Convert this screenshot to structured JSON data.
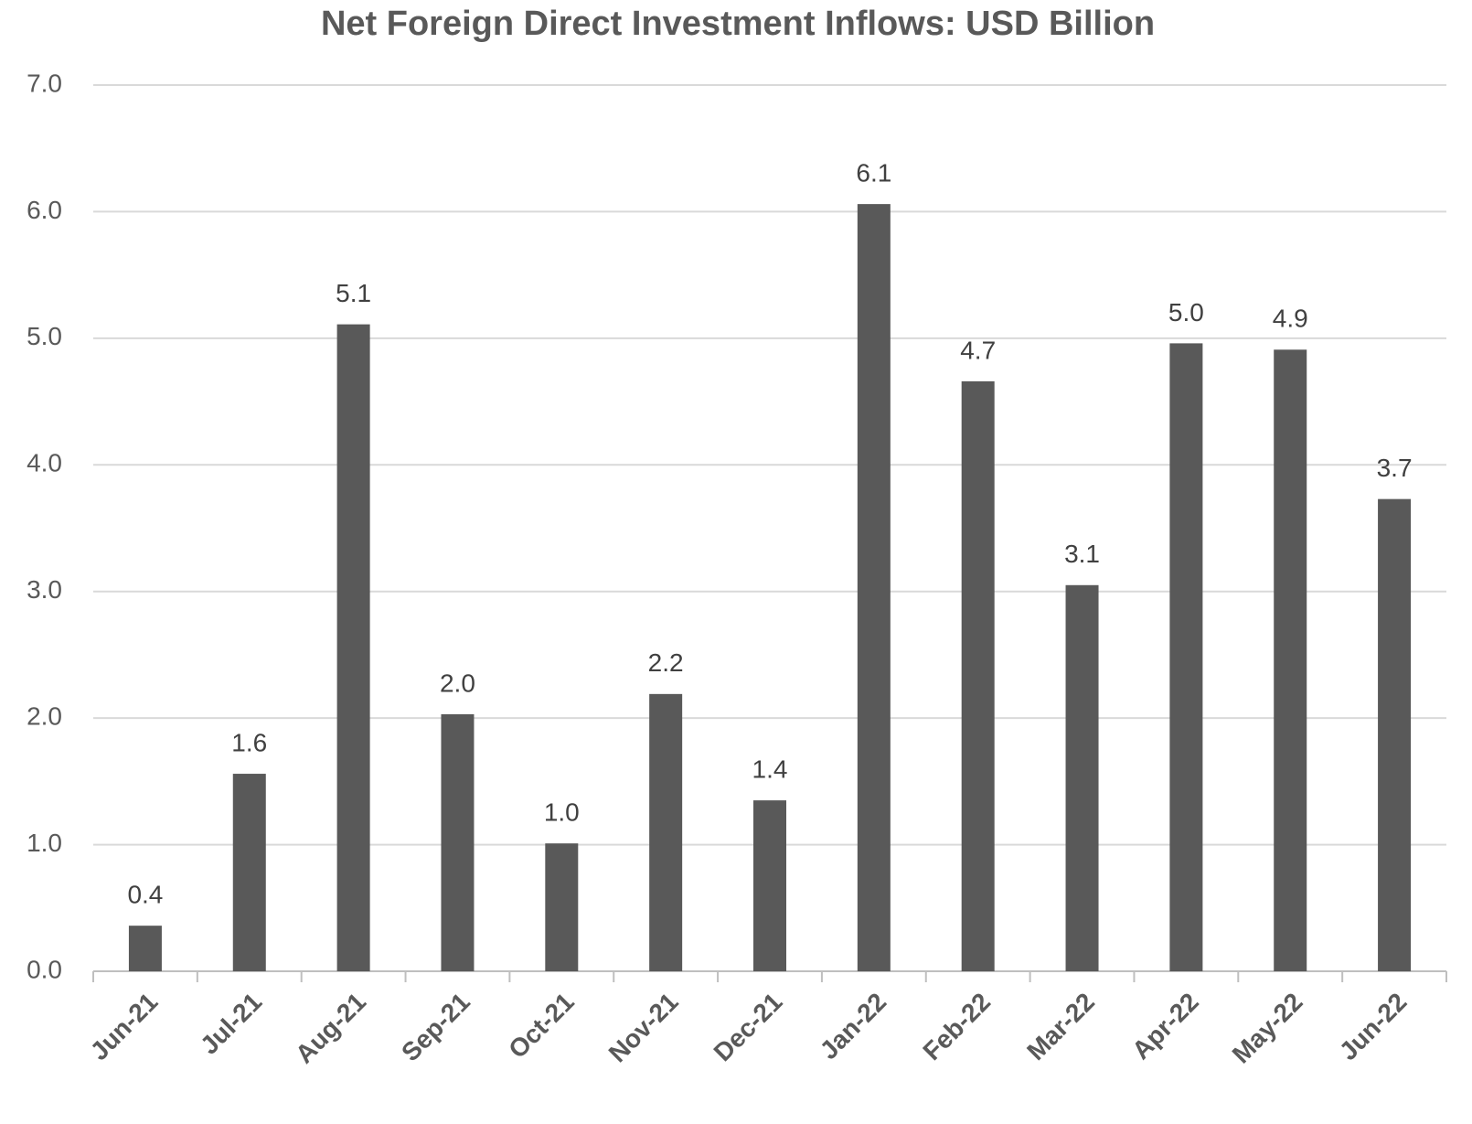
{
  "chart_data": {
    "type": "bar",
    "title": "Net Foreign Direct Investment Inflows: USD Billion",
    "categories": [
      "Jun-21",
      "Jul-21",
      "Aug-21",
      "Sep-21",
      "Oct-21",
      "Nov-21",
      "Dec-21",
      "Jan-22",
      "Feb-22",
      "Mar-22",
      "Apr-22",
      "May-22",
      "Jun-22"
    ],
    "values": [
      0.36,
      1.56,
      5.11,
      2.03,
      1.01,
      2.19,
      1.35,
      6.06,
      4.66,
      3.05,
      4.96,
      4.91,
      3.73
    ],
    "value_labels": [
      "0.4",
      "1.6",
      "5.1",
      "2.0",
      "1.0",
      "2.2",
      "1.4",
      "6.1",
      "4.7",
      "3.1",
      "5.0",
      "4.9",
      "3.7"
    ],
    "color": "#595959",
    "ylim": [
      0,
      7
    ],
    "yticks": [
      {
        "value": 0,
        "label": "0.0"
      },
      {
        "value": 1,
        "label": "1.0"
      },
      {
        "value": 2,
        "label": "2.0"
      },
      {
        "value": 3,
        "label": "3.0"
      },
      {
        "value": 4,
        "label": "4.0"
      },
      {
        "value": 5,
        "label": "5.0"
      },
      {
        "value": 6,
        "label": "6.0"
      },
      {
        "value": 7,
        "label": "7.0"
      }
    ],
    "grid": true
  }
}
